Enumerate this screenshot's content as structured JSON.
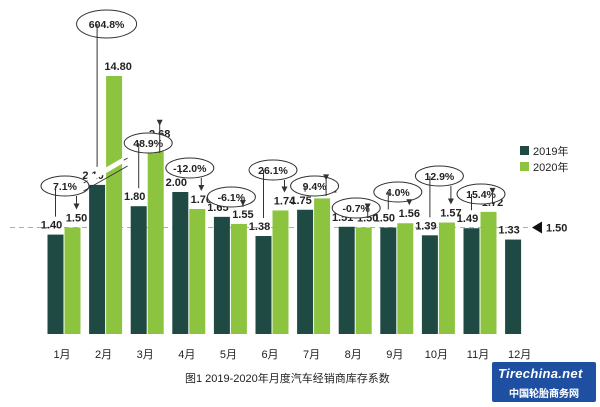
{
  "chart_data": {
    "type": "bar",
    "categories": [
      "1月",
      "2月",
      "3月",
      "4月",
      "5月",
      "6月",
      "7月",
      "8月",
      "9月",
      "10月",
      "11月",
      "12月"
    ],
    "series": [
      {
        "name": "2019年",
        "values": [
          1.4,
          2.1,
          1.8,
          2.0,
          1.65,
          1.38,
          1.75,
          1.51,
          1.5,
          1.39,
          1.49,
          1.33
        ],
        "color": "#1f4a44"
      },
      {
        "name": "2020年",
        "values": [
          1.5,
          14.8,
          2.68,
          1.76,
          1.55,
          1.74,
          1.91,
          1.5,
          1.56,
          1.57,
          1.72,
          null
        ],
        "color": "#8cc43f"
      }
    ],
    "value_labels": {
      "2019年": [
        "1.40",
        "2.10",
        "1.80",
        "2.00",
        "1.65",
        "1.38",
        "1.75",
        "1.51",
        "1.50",
        "1.39",
        "1.49",
        "1.33"
      ],
      "2020年": [
        "1.50",
        "14.80",
        "2.68",
        "1.76",
        "1.55",
        "1.74",
        "1.91",
        "1.50",
        "1.56",
        "1.57",
        "1.72",
        ""
      ]
    },
    "yoy_change": [
      "7.1%",
      "604.8%",
      "48.9%",
      "-12.0%",
      "-6.1%",
      "26.1%",
      "9.4%",
      "-0.7%",
      "4.0%",
      "12.9%",
      "15.4%",
      ""
    ],
    "reference_line": {
      "value": 1.5,
      "label": "1.50",
      "style": "dashed",
      "color": "#8fb3d9"
    },
    "axis_break": {
      "category": "2月",
      "series": "2020年"
    },
    "legend": {
      "position": "right",
      "entries": [
        "2019年",
        "2020年"
      ]
    },
    "title": "",
    "caption": "图1  2019-2020年月度汽车经销商库存系数",
    "grid": false
  },
  "watermark": {
    "logo_text": "Tirechina.net",
    "subtitle": "中国轮胎商务网"
  }
}
